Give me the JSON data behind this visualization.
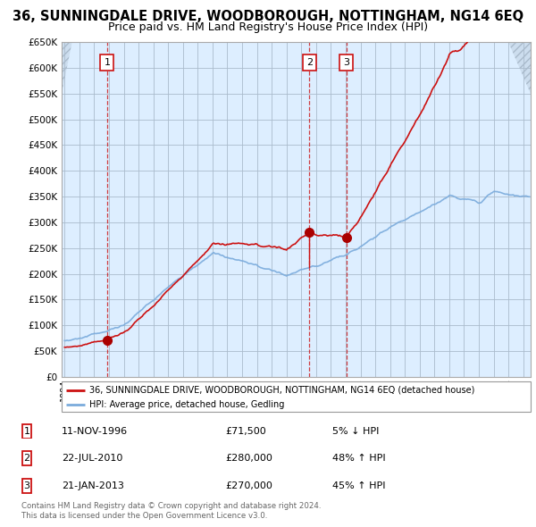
{
  "title": "36, SUNNINGDALE DRIVE, WOODBOROUGH, NOTTINGHAM, NG14 6EQ",
  "subtitle": "Price paid vs. HM Land Registry's House Price Index (HPI)",
  "title_fontsize": 10.5,
  "subtitle_fontsize": 9,
  "ylim": [
    0,
    650000
  ],
  "yticks": [
    0,
    50000,
    100000,
    150000,
    200000,
    250000,
    300000,
    350000,
    400000,
    450000,
    500000,
    550000,
    600000,
    650000
  ],
  "ytick_labels": [
    "£0",
    "£50K",
    "£100K",
    "£150K",
    "£200K",
    "£250K",
    "£300K",
    "£350K",
    "£400K",
    "£450K",
    "£500K",
    "£550K",
    "£600K",
    "£650K"
  ],
  "hpi_color": "#7aabdc",
  "price_color": "#cc1111",
  "sale_marker_color": "#aa0000",
  "plot_bg_color": "#ddeeff",
  "bg_color": "#ffffff",
  "grid_color": "#aabbcc",
  "sale_points": [
    {
      "date_num": 1996.87,
      "price": 71500,
      "label": "1"
    },
    {
      "date_num": 2010.55,
      "price": 280000,
      "label": "2"
    },
    {
      "date_num": 2013.05,
      "price": 270000,
      "label": "3"
    }
  ],
  "legend_property_label": "36, SUNNINGDALE DRIVE, WOODBOROUGH, NOTTINGHAM, NG14 6EQ (detached house)",
  "legend_hpi_label": "HPI: Average price, detached house, Gedling",
  "table_rows": [
    {
      "num": "1",
      "date": "11-NOV-1996",
      "price": "£71,500",
      "pct": "5% ↓ HPI"
    },
    {
      "num": "2",
      "date": "22-JUL-2010",
      "price": "£280,000",
      "pct": "48% ↑ HPI"
    },
    {
      "num": "3",
      "date": "21-JAN-2013",
      "price": "£270,000",
      "pct": "45% ↑ HPI"
    }
  ],
  "footer": "Contains HM Land Registry data © Crown copyright and database right 2024.\nThis data is licensed under the Open Government Licence v3.0."
}
